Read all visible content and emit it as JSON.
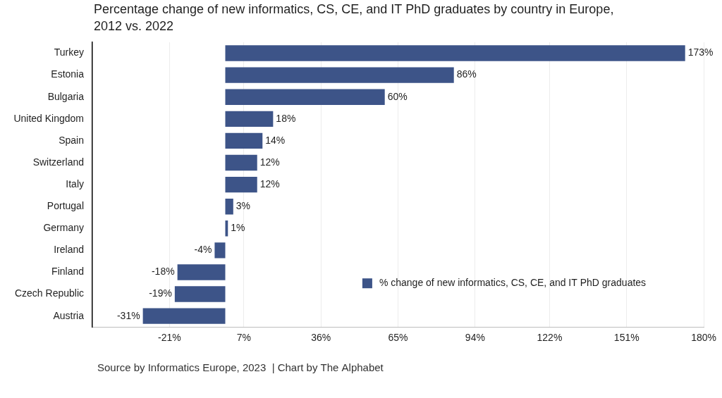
{
  "chart_data": {
    "type": "bar",
    "title": [
      "Percentage change of new informatics, CS, CE, and IT PhD graduates by country in Europe,",
      "2012 vs. 2022"
    ],
    "caption": "Source by Informatics Europe, 2023  | Chart by The Alphabet",
    "orientation": "horizontal",
    "categories": [
      "Turkey",
      "Estonia",
      "Bulgaria",
      "United Kingdom",
      "Spain",
      "Switzerland",
      "Italy",
      "Portugal",
      "Germany",
      "Ireland",
      "Finland",
      "Czech Republic",
      "Austria"
    ],
    "series": [
      {
        "name": "% change of new informatics, CS, CE, and IT PhD graduates",
        "color": "#3d5488",
        "values": [
          173,
          86,
          60,
          18,
          14,
          12,
          12,
          3,
          1,
          -4,
          -18,
          -19,
          -31
        ],
        "value_labels": [
          "173%",
          "86%",
          "60%",
          "18%",
          "14%",
          "12%",
          "12%",
          "3%",
          "1%",
          "-4%",
          "-18%",
          "-19%",
          "-31%"
        ]
      }
    ],
    "xlim": [
      -50,
      180
    ],
    "xticks": [
      {
        "value": -21,
        "label": "-21%"
      },
      {
        "value": 7,
        "label": "7%"
      },
      {
        "value": 36,
        "label": "36%"
      },
      {
        "value": 65,
        "label": "65%"
      },
      {
        "value": 94,
        "label": "94%"
      },
      {
        "value": 122,
        "label": "122%"
      },
      {
        "value": 151,
        "label": "151%"
      },
      {
        "value": 180,
        "label": "180%"
      }
    ],
    "grid": true,
    "legend": "lower right",
    "data_labels": true
  }
}
